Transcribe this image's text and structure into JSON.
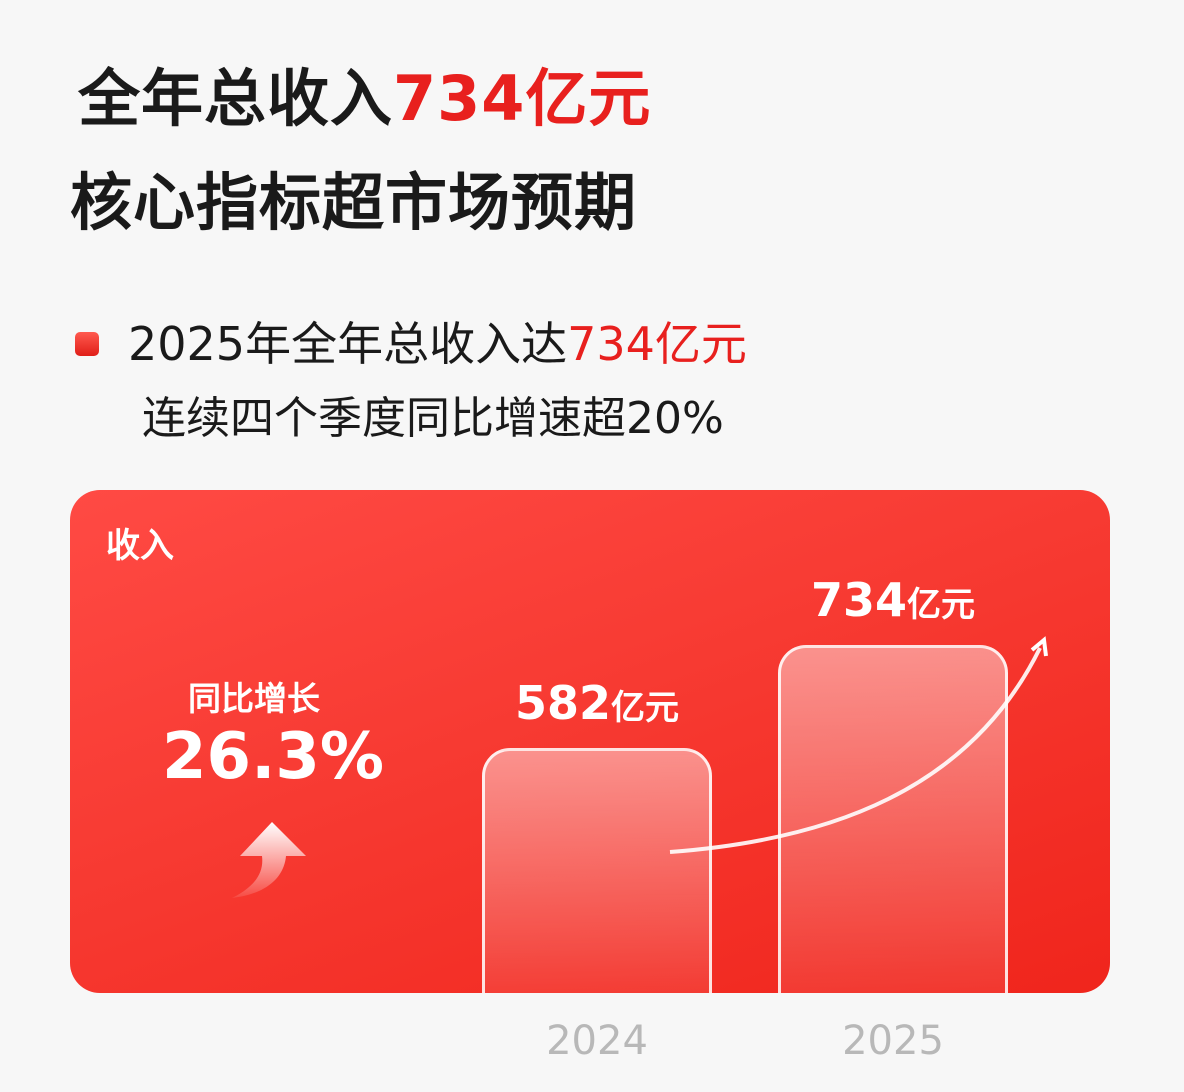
{
  "headline": {
    "line1_prefix": "全年总收入",
    "line1_highlight": "734亿元",
    "line2": "核心指标超市场预期"
  },
  "bullet": {
    "line1_prefix": "2025年全年总收入达",
    "line1_highlight": "734亿元",
    "line2": "连续四个季度同比增速超20%"
  },
  "colors": {
    "accent": "#e8201e",
    "panel": "#f73a32",
    "year_label": "#b8b8b8"
  },
  "panel": {
    "label": "收入",
    "yoy_label": "同比增长",
    "yoy_value": "26.3%",
    "arrow_icon": "up-arrow-icon"
  },
  "chart_data": {
    "type": "bar",
    "categories": [
      "2024",
      "2025"
    ],
    "values": [
      582,
      734
    ],
    "unit": "亿元",
    "data_labels": [
      "582",
      "734"
    ],
    "trend_arrow": true
  }
}
